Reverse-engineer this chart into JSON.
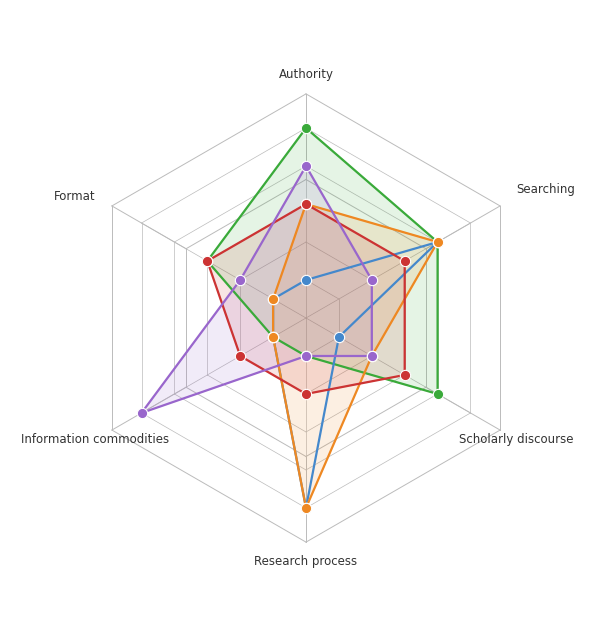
{
  "categories": [
    "Authority",
    "Searching",
    "Scholarly discourse",
    "Research process",
    "Information commodities",
    "Format"
  ],
  "series": [
    {
      "name": "green",
      "color": "#3aaa3a",
      "fill_alpha": 0.13,
      "values": [
        5,
        4,
        4,
        1,
        1,
        3
      ]
    },
    {
      "name": "blue",
      "color": "#4488cc",
      "fill_alpha": 0.0,
      "values": [
        1,
        4,
        1,
        5,
        1,
        1
      ]
    },
    {
      "name": "orange",
      "color": "#ee8822",
      "fill_alpha": 0.13,
      "values": [
        3,
        4,
        2,
        5,
        1,
        1
      ]
    },
    {
      "name": "red",
      "color": "#cc3333",
      "fill_alpha": 0.13,
      "values": [
        3,
        3,
        3,
        2,
        2,
        3
      ]
    },
    {
      "name": "purple",
      "color": "#9966cc",
      "fill_alpha": 0.13,
      "values": [
        4,
        2,
        2,
        1,
        5,
        2
      ]
    }
  ],
  "num_levels": 5,
  "max_val": 5,
  "background_color": "#ffffff",
  "grid_color": "#bbbbbb",
  "label_fontsize": 8.5,
  "marker_size": 55,
  "line_width": 1.6,
  "figsize": [
    6.12,
    6.36
  ],
  "dpi": 100
}
